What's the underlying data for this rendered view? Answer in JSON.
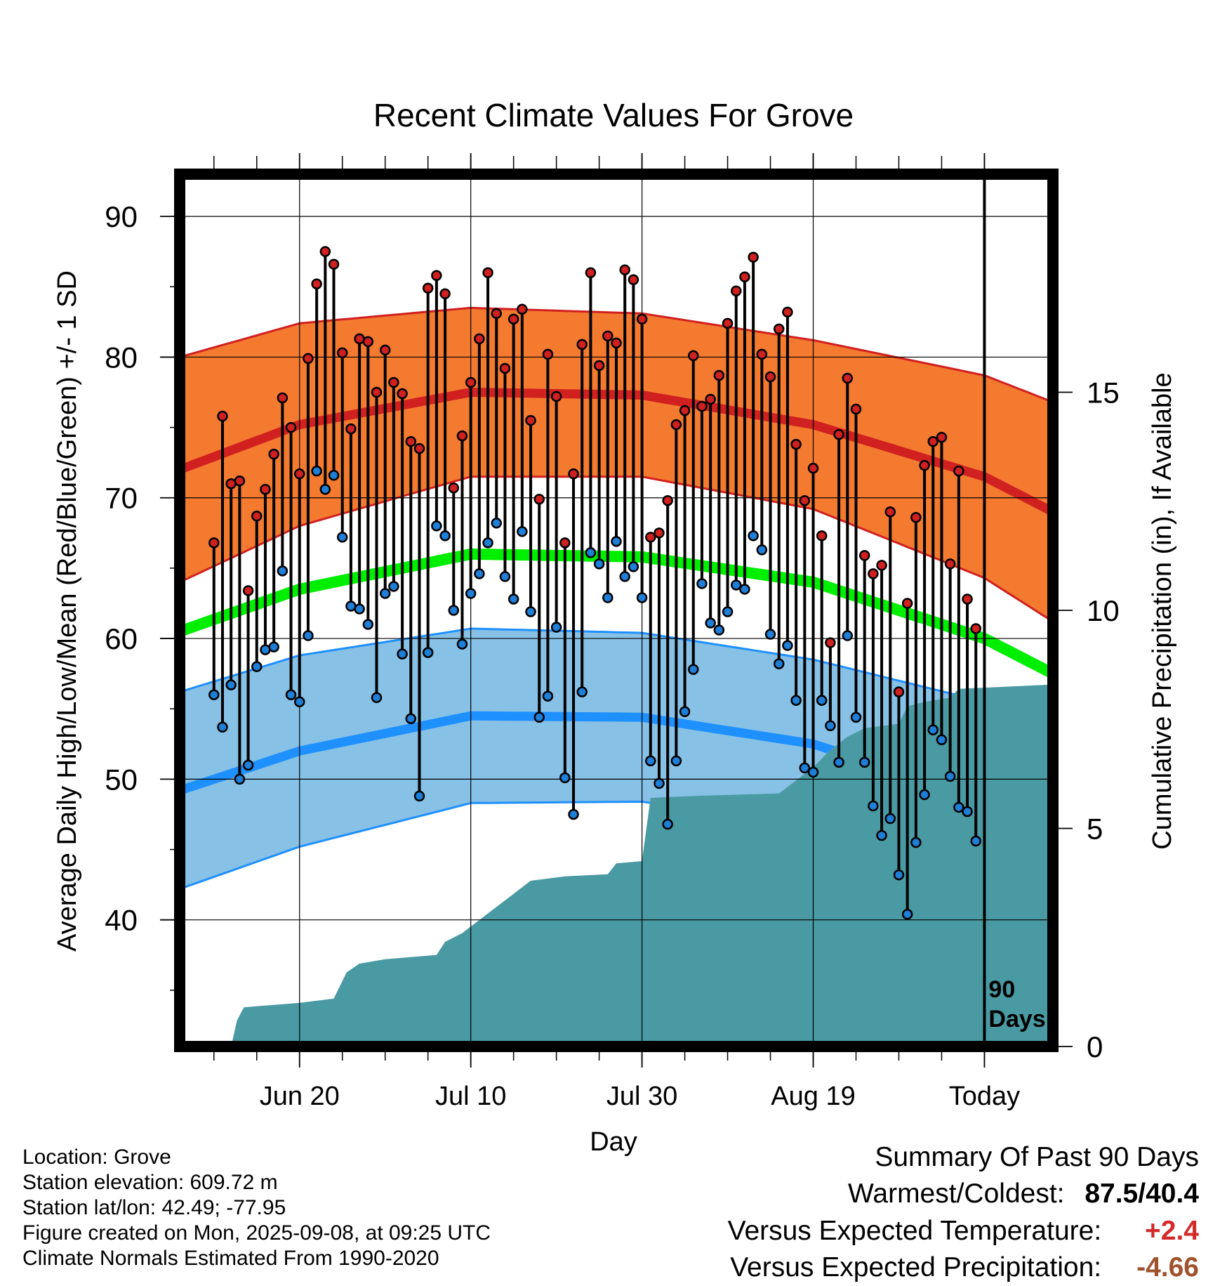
{
  "chart_data": {
    "type": "line",
    "title": "Recent Climate Values For Grove",
    "xlabel": "Day",
    "ylabel": "Average Daily High/Low/Mean (Red/Blue/Green) +/- 1 SD",
    "y2label": "Cumulative Precipitation (in), If Available",
    "xlim": [
      -94,
      8
    ],
    "ylim": [
      31,
      93
    ],
    "y2lim": [
      0,
      20
    ],
    "yticks": [
      40,
      50,
      60,
      70,
      80,
      90
    ],
    "y2ticks": [
      0,
      5,
      10,
      15
    ],
    "x_tick_labels": [
      {
        "x": -80,
        "label": "Jun 20"
      },
      {
        "x": -60,
        "label": "Jul 10"
      },
      {
        "x": -40,
        "label": "Jul 30"
      },
      {
        "x": -20,
        "label": "Aug 19"
      },
      {
        "x": 0,
        "label": "Today"
      }
    ],
    "period_label": [
      "90",
      "Days"
    ],
    "grid": true,
    "colors": {
      "high_band": "#f47a30",
      "high_line": "#d12020",
      "low_band": "#87c1e6",
      "low_line": "#1e90ff",
      "mean_line": "#00ee00",
      "precip": "#4a9aa3",
      "high_dot": "#d12020",
      "low_dot": "#1e7fd8"
    },
    "normals_x": [
      -94,
      -80,
      -60,
      -40,
      -20,
      0,
      8
    ],
    "normal_high": [
      72.0,
      75.2,
      77.5,
      77.3,
      75.2,
      71.5,
      69.0
    ],
    "normal_high_sd": [
      8.0,
      7.2,
      6.0,
      5.8,
      6.0,
      7.2,
      7.8
    ],
    "normal_low": [
      49.2,
      52.0,
      54.5,
      54.4,
      52.5,
      48.5,
      46.0
    ],
    "normal_low_sd": [
      7.0,
      6.8,
      6.2,
      6.0,
      6.0,
      7.0,
      7.5
    ],
    "normal_mean": [
      60.5,
      63.5,
      66.0,
      65.8,
      64.0,
      60.0,
      57.5
    ],
    "daily_high": [
      66.8,
      75.8,
      71.0,
      71.2,
      63.4,
      68.7,
      70.6,
      73.1,
      77.1,
      75.0,
      71.7,
      79.9,
      85.2,
      87.5,
      86.6,
      80.3,
      74.9,
      81.3,
      81.1,
      77.5,
      80.5,
      78.2,
      77.4,
      74.0,
      73.5,
      84.9,
      85.8,
      84.5,
      70.7,
      74.4,
      78.2,
      81.3,
      86.0,
      83.1,
      79.2,
      82.7,
      83.4,
      75.5,
      69.9,
      80.2,
      77.2,
      66.8,
      71.7,
      80.9,
      86.0,
      79.4,
      81.5,
      81.0,
      86.2,
      85.5,
      82.7,
      67.2,
      67.5,
      69.8,
      75.2,
      76.2,
      80.1,
      76.5,
      77.0,
      78.7,
      82.4,
      84.7,
      85.7,
      87.1,
      80.2,
      78.6,
      82.0,
      83.2,
      73.8,
      69.8,
      72.1,
      67.3,
      59.7,
      74.5,
      78.5,
      76.3,
      65.9,
      64.6,
      65.2,
      69.0,
      56.2,
      62.5,
      68.6,
      72.3,
      74.0,
      74.3,
      65.3,
      71.9,
      62.8,
      60.7
    ],
    "daily_low": [
      56.0,
      53.7,
      56.7,
      50.0,
      51.0,
      58.0,
      59.2,
      59.4,
      64.8,
      56.0,
      55.5,
      60.2,
      71.9,
      70.6,
      71.6,
      67.2,
      62.3,
      62.1,
      61.0,
      55.8,
      63.2,
      63.7,
      58.9,
      54.3,
      48.8,
      59.0,
      68.0,
      67.3,
      62.0,
      59.6,
      63.2,
      64.6,
      66.8,
      68.2,
      64.4,
      62.8,
      67.6,
      61.9,
      54.4,
      55.9,
      60.8,
      50.1,
      47.5,
      56.2,
      66.1,
      65.3,
      62.9,
      66.9,
      64.4,
      65.1,
      62.9,
      51.3,
      49.7,
      46.8,
      51.3,
      54.8,
      57.8,
      63.9,
      61.1,
      60.6,
      61.9,
      63.8,
      63.5,
      67.3,
      66.3,
      60.3,
      58.2,
      59.5,
      55.6,
      50.8,
      50.5,
      55.6,
      53.8,
      51.2,
      60.2,
      54.4,
      51.2,
      48.1,
      46.0,
      47.2,
      43.2,
      40.4,
      45.5,
      48.9,
      53.5,
      52.8,
      50.2,
      48.0,
      47.7,
      45.6
    ],
    "precip_cumulative": [
      {
        "x": -94,
        "y": 0.0
      },
      {
        "x": -88,
        "y": 0.0
      },
      {
        "x": -87.3,
        "y": 0.6
      },
      {
        "x": -86.5,
        "y": 0.9
      },
      {
        "x": -80,
        "y": 1.0
      },
      {
        "x": -76,
        "y": 1.1
      },
      {
        "x": -74.5,
        "y": 1.7
      },
      {
        "x": -73,
        "y": 1.9
      },
      {
        "x": -70,
        "y": 2.0
      },
      {
        "x": -64,
        "y": 2.1
      },
      {
        "x": -63,
        "y": 2.4
      },
      {
        "x": -61,
        "y": 2.6
      },
      {
        "x": -59,
        "y": 2.9
      },
      {
        "x": -57,
        "y": 3.2
      },
      {
        "x": -55,
        "y": 3.5
      },
      {
        "x": -53,
        "y": 3.8
      },
      {
        "x": -49,
        "y": 3.9
      },
      {
        "x": -44,
        "y": 3.95
      },
      {
        "x": -43,
        "y": 4.2
      },
      {
        "x": -40,
        "y": 4.25
      },
      {
        "x": -39,
        "y": 5.7
      },
      {
        "x": -33,
        "y": 5.75
      },
      {
        "x": -24,
        "y": 5.8
      },
      {
        "x": -22,
        "y": 6.1
      },
      {
        "x": -20,
        "y": 6.4
      },
      {
        "x": -18,
        "y": 6.8
      },
      {
        "x": -16,
        "y": 7.1
      },
      {
        "x": -14,
        "y": 7.3
      },
      {
        "x": -10,
        "y": 7.4
      },
      {
        "x": -9,
        "y": 7.8
      },
      {
        "x": -7,
        "y": 7.9
      },
      {
        "x": -4,
        "y": 8.0
      },
      {
        "x": -3,
        "y": 8.2
      },
      {
        "x": 8,
        "y": 8.3
      }
    ]
  },
  "info": {
    "location": "Location: Grove",
    "elevation": "Station elevation: 609.72 m",
    "latlon": "Station lat/lon: 42.49; -77.95",
    "created": "Figure created on Mon, 2025-09-08, at 09:25 UTC",
    "normals": "Climate Normals Estimated From 1990-2020"
  },
  "summary": {
    "title": "Summary Of Past 90 Days",
    "warm_cold_label": "Warmest/Coldest:",
    "warm_cold_value": "87.5/40.4",
    "temp_label": "Versus Expected Temperature:",
    "temp_value": "+2.4",
    "temp_color": "#d42a2a",
    "precip_label": "Versus Expected Precipitation:",
    "precip_value": "-4.66",
    "precip_color": "#a0522d"
  }
}
